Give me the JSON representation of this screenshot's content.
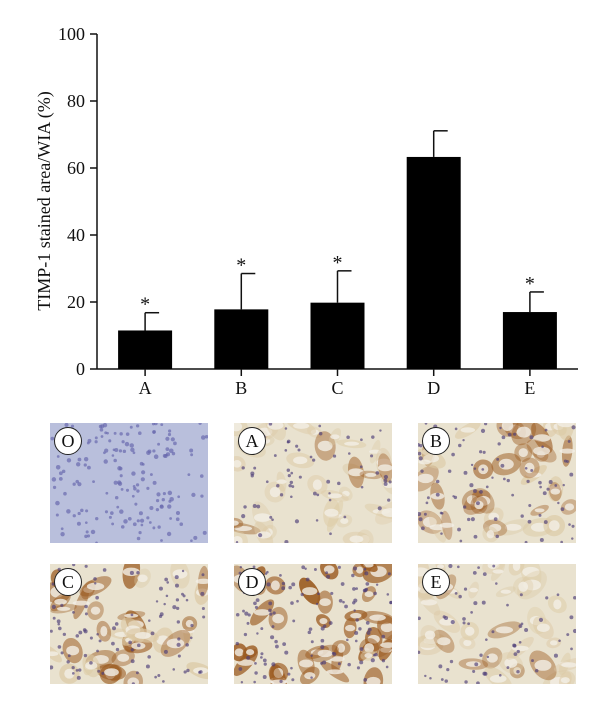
{
  "chart_data": {
    "type": "bar",
    "ylabel": "TIMP-1 stained area/WIA (%)",
    "ylim": [
      0,
      100
    ],
    "yticks": [
      0,
      20,
      40,
      60,
      80,
      100
    ],
    "categories": [
      "A",
      "B",
      "C",
      "D",
      "E"
    ],
    "values": [
      11.5,
      17.8,
      19.8,
      63.3,
      17.0
    ],
    "errors": [
      5.3,
      10.7,
      9.5,
      7.8,
      6.0
    ],
    "annotations": [
      "*",
      "*",
      "*",
      "",
      "*"
    ],
    "bar_color": "#000000"
  },
  "panels": [
    {
      "label": "O",
      "stain": "hematoxylin"
    },
    {
      "label": "A",
      "stain": "light"
    },
    {
      "label": "B",
      "stain": "medium"
    },
    {
      "label": "C",
      "stain": "medium-strong"
    },
    {
      "label": "D",
      "stain": "strong"
    },
    {
      "label": "E",
      "stain": "light"
    }
  ],
  "colors": {
    "hematoxylin_bg": "#b9bfdc",
    "hematoxylin_dot": "#6a6aae",
    "dab_light": "#dcc9a4",
    "dab_strong": "#9b5a20",
    "nucleus": "#4b3c78"
  }
}
